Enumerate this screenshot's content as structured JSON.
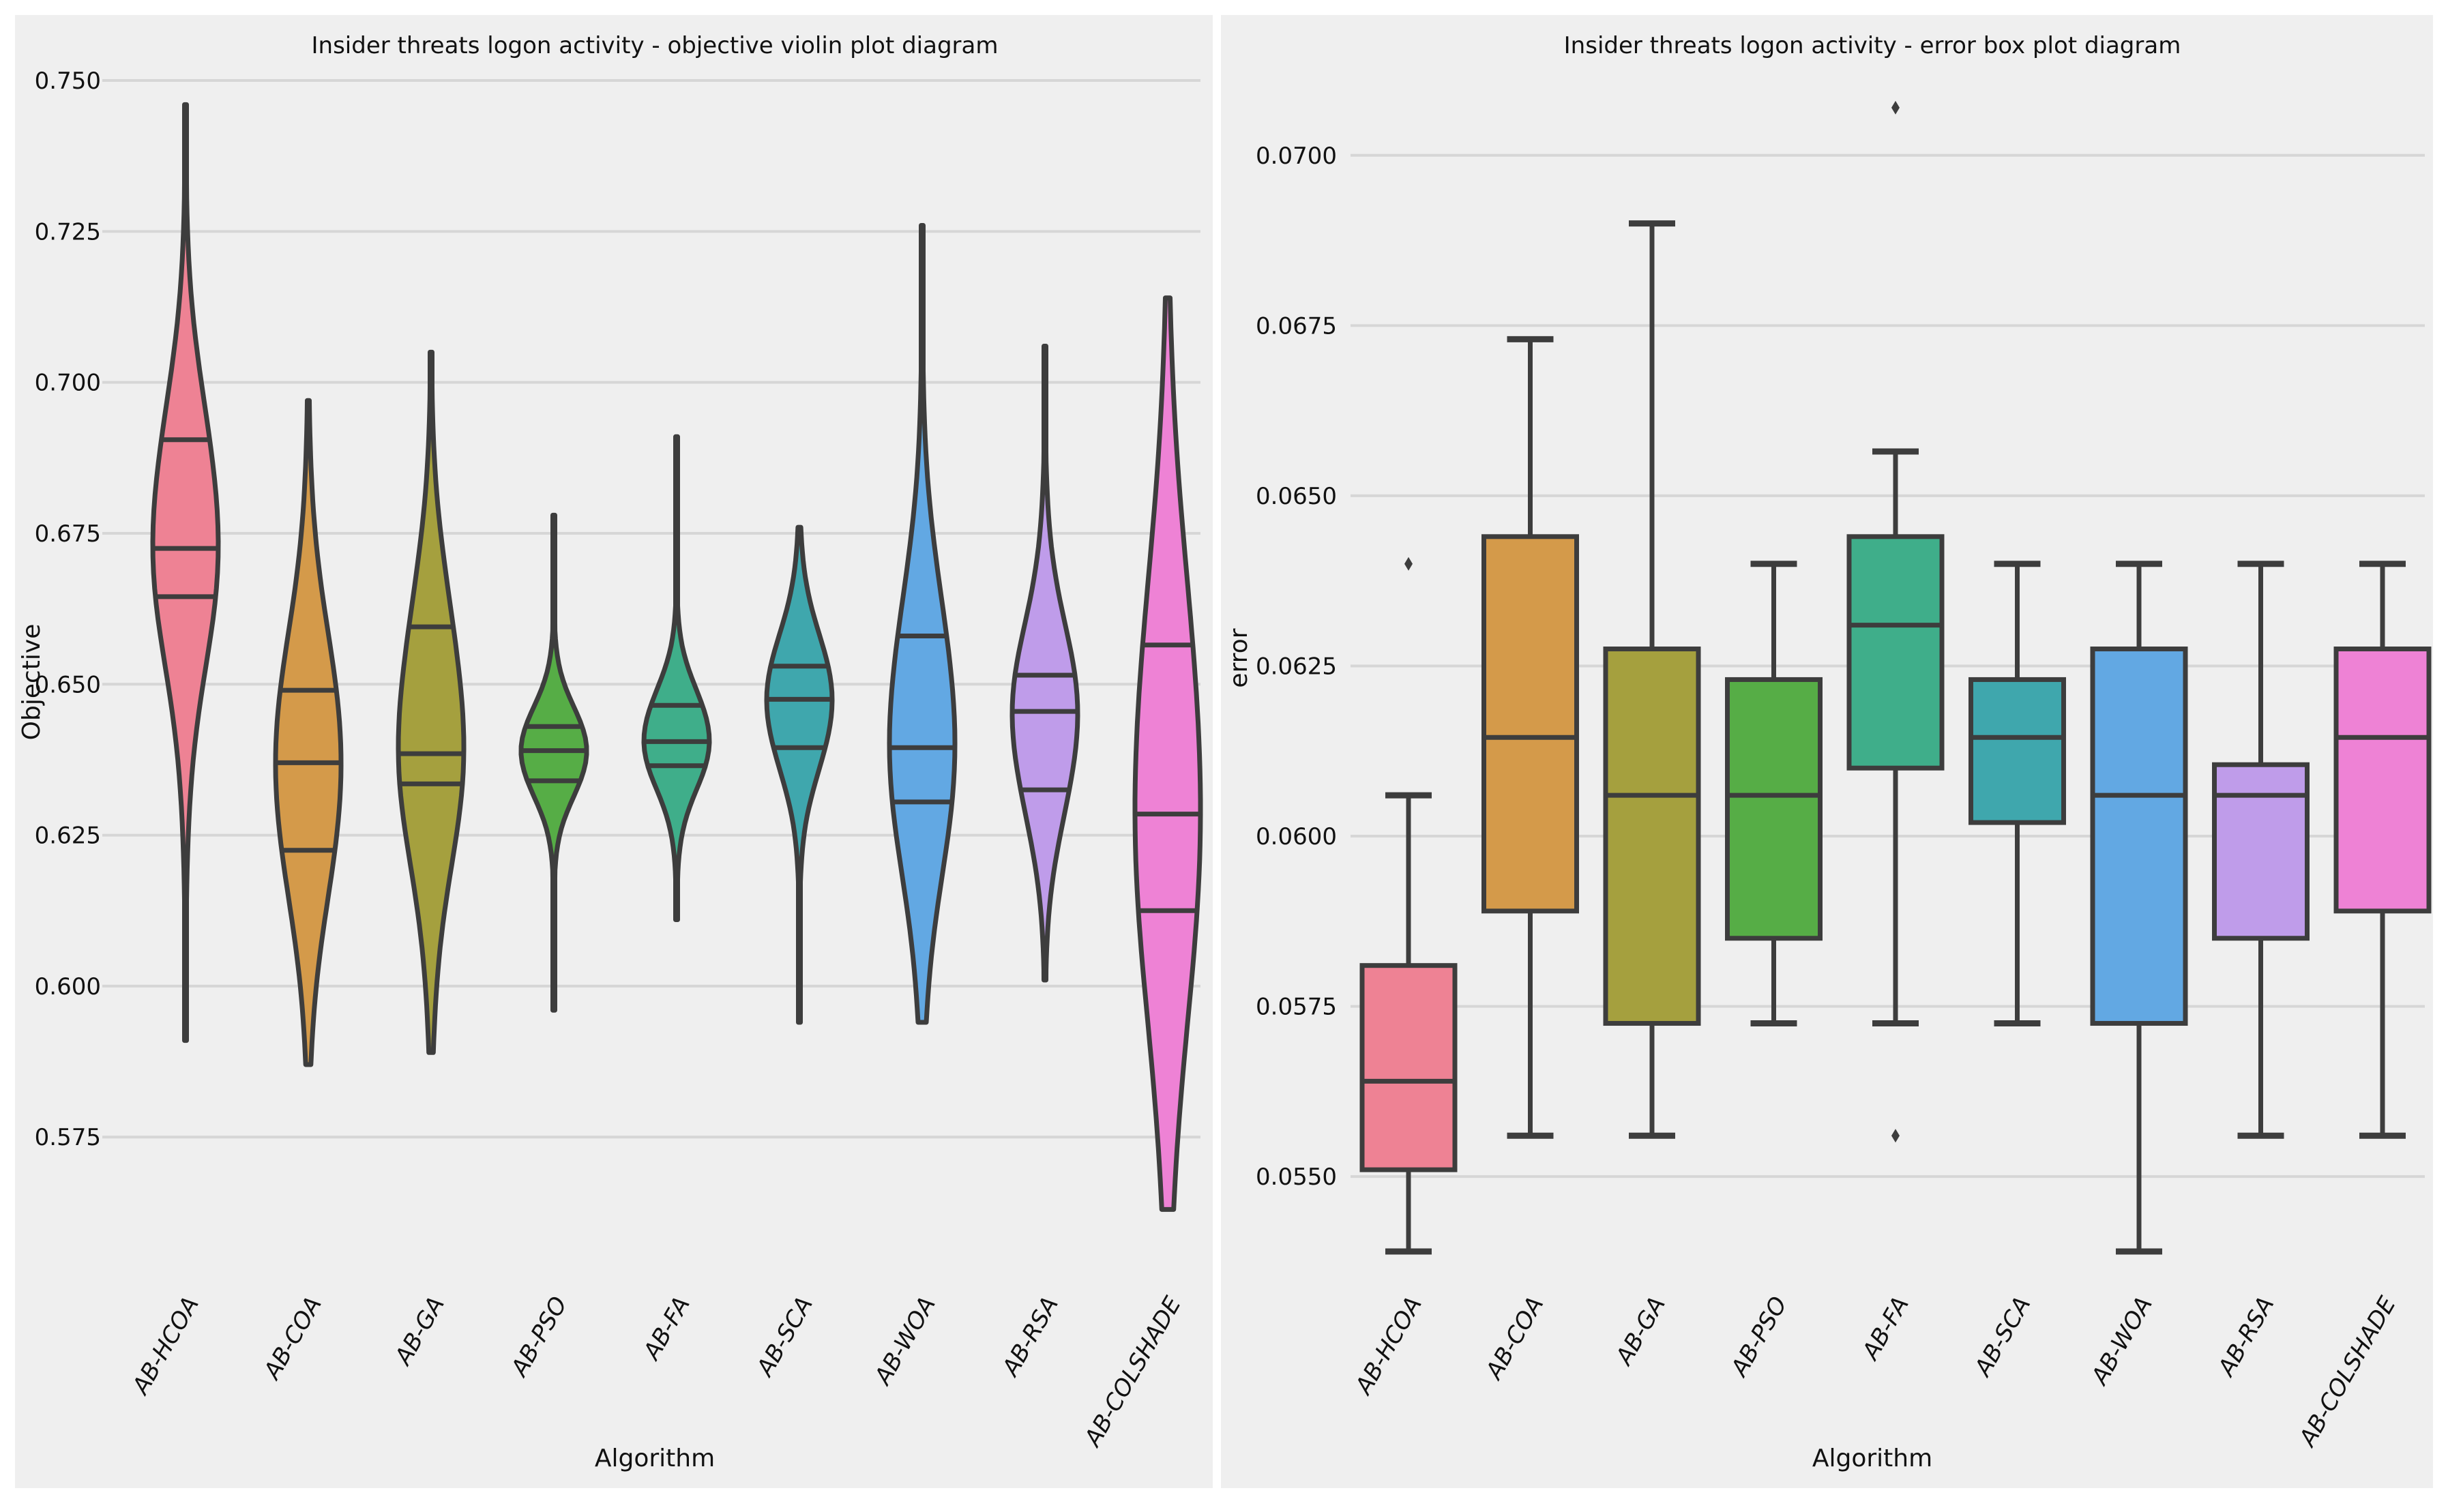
{
  "chart_data": [
    {
      "type": "violin",
      "title": "Insider threats logon activity -  objective violin plot diagram",
      "xlabel": "Algorithm",
      "ylabel": "Objective",
      "ylim": [
        0.56,
        0.75
      ],
      "yticks": [
        0.575,
        0.6,
        0.625,
        0.65,
        0.675,
        0.7,
        0.725,
        0.75
      ],
      "ytick_labels": [
        "0.575",
        "0.600",
        "0.625",
        "0.650",
        "0.675",
        "0.700",
        "0.725",
        "0.750"
      ],
      "grid": true,
      "categories": [
        "AB-HCOA",
        "AB-COA",
        "AB-GA",
        "AB-PSO",
        "AB-FA",
        "AB-SCA",
        "AB-WOA",
        "AB-RSA",
        "AB-COLSHADE"
      ],
      "colors": [
        "#ee8294",
        "#d49a4a",
        "#a5a03e",
        "#56ad46",
        "#3fae8a",
        "#3fa7ad",
        "#62a8e3",
        "#bf9cea",
        "#ee82d5"
      ],
      "series": [
        {
          "min": 0.591,
          "max": 0.746,
          "quartile_lines": [
            0.6645,
            0.6725,
            0.6905
          ]
        },
        {
          "min": 0.587,
          "max": 0.697,
          "quartile_lines": [
            0.6225,
            0.637,
            0.649
          ]
        },
        {
          "min": 0.589,
          "max": 0.705,
          "quartile_lines": [
            0.6335,
            0.6385,
            0.6595
          ]
        },
        {
          "min": 0.596,
          "max": 0.678,
          "quartile_lines": [
            0.634,
            0.639,
            0.643
          ]
        },
        {
          "min": 0.611,
          "max": 0.691,
          "quartile_lines": [
            0.6365,
            0.6405,
            0.6465
          ]
        },
        {
          "min": 0.594,
          "max": 0.676,
          "quartile_lines": [
            0.6395,
            0.6475,
            0.653
          ]
        },
        {
          "min": 0.594,
          "max": 0.726,
          "quartile_lines": [
            0.6305,
            0.6395,
            0.658
          ]
        },
        {
          "min": 0.601,
          "max": 0.706,
          "quartile_lines": [
            0.6325,
            0.6455,
            0.6515
          ]
        },
        {
          "min": 0.563,
          "max": 0.714,
          "quartile_lines": [
            0.6125,
            0.6285,
            0.6565
          ]
        }
      ]
    },
    {
      "type": "box",
      "title": "Insider threats logon activity - error box plot diagram",
      "xlabel": "Algorithm",
      "ylabel": "error",
      "ylim": [
        0.05425,
        0.0711
      ],
      "yticks": [
        0.055,
        0.0575,
        0.06,
        0.0625,
        0.065,
        0.0675,
        0.07
      ],
      "ytick_labels": [
        "0.0550",
        "0.0575",
        "0.0600",
        "0.0625",
        "0.0650",
        "0.0675",
        "0.0700"
      ],
      "grid": true,
      "categories": [
        "AB-HCOA",
        "AB-COA",
        "AB-GA",
        "AB-PSO",
        "AB-FA",
        "AB-SCA",
        "AB-WOA",
        "AB-RSA",
        "AB-COLSHADE"
      ],
      "colors": [
        "#ee8294",
        "#d49a4a",
        "#a5a03e",
        "#56ad46",
        "#3fae8a",
        "#3fa7ad",
        "#62a8e3",
        "#bf9cea",
        "#ee82d5"
      ],
      "series": [
        {
          "whisker_low": 0.0539,
          "q1": 0.0551,
          "median": 0.0564,
          "q3": 0.0581,
          "whisker_high": 0.0606,
          "outliers": [
            0.064
          ]
        },
        {
          "whisker_low": 0.0556,
          "q1": 0.0589,
          "median": 0.06145,
          "q3": 0.0644,
          "whisker_high": 0.0673,
          "outliers": []
        },
        {
          "whisker_low": 0.0556,
          "q1": 0.05725,
          "median": 0.0606,
          "q3": 0.06275,
          "whisker_high": 0.069,
          "outliers": []
        },
        {
          "whisker_low": 0.05725,
          "q1": 0.0585,
          "median": 0.0606,
          "q3": 0.0623,
          "whisker_high": 0.064,
          "outliers": []
        },
        {
          "whisker_low": 0.05725,
          "q1": 0.061,
          "median": 0.0631,
          "q3": 0.0644,
          "whisker_high": 0.06565,
          "outliers": [
            0.0707,
            0.0556
          ]
        },
        {
          "whisker_low": 0.05725,
          "q1": 0.0602,
          "median": 0.06145,
          "q3": 0.0623,
          "whisker_high": 0.064,
          "outliers": []
        },
        {
          "whisker_low": 0.0539,
          "q1": 0.05725,
          "median": 0.0606,
          "q3": 0.06275,
          "whisker_high": 0.064,
          "outliers": []
        },
        {
          "whisker_low": 0.0556,
          "q1": 0.0585,
          "median": 0.0606,
          "q3": 0.06105,
          "whisker_high": 0.064,
          "outliers": []
        },
        {
          "whisker_low": 0.0556,
          "q1": 0.0589,
          "median": 0.06145,
          "q3": 0.06275,
          "whisker_high": 0.064,
          "outliers": []
        }
      ]
    }
  ]
}
